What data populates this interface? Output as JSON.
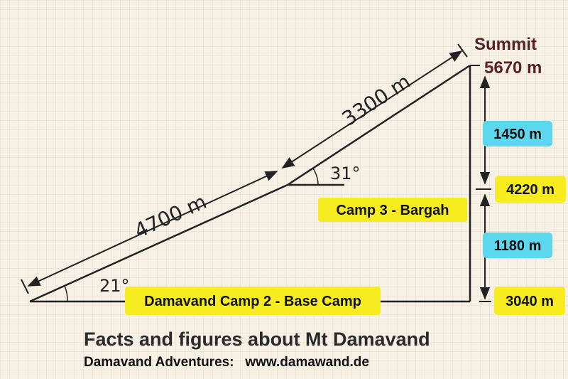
{
  "diagram": {
    "summit_label": "Summit",
    "summit_altitude": "5670 m",
    "upper_slope_length": "3300 m",
    "lower_slope_length": "4700 m",
    "upper_angle": "31°",
    "lower_angle": "21°",
    "upper_height_diff": "1450 m",
    "lower_height_diff": "1180 m",
    "camp3_altitude": "4220 m",
    "camp3_label": "Camp 3 - Bargah",
    "camp2_label": "Damavand Camp 2 - Base Camp",
    "camp2_altitude": "3040 m"
  },
  "footer": {
    "title": "Facts and figures about Mt Damavand",
    "credit": "Damavand Adventures:   www.damawand.de"
  },
  "colors": {
    "highlight_yellow": "#f6ec1f",
    "highlight_cyan": "#5cd8ee",
    "summit_text": "#5a1f2a",
    "line": "#222222"
  }
}
